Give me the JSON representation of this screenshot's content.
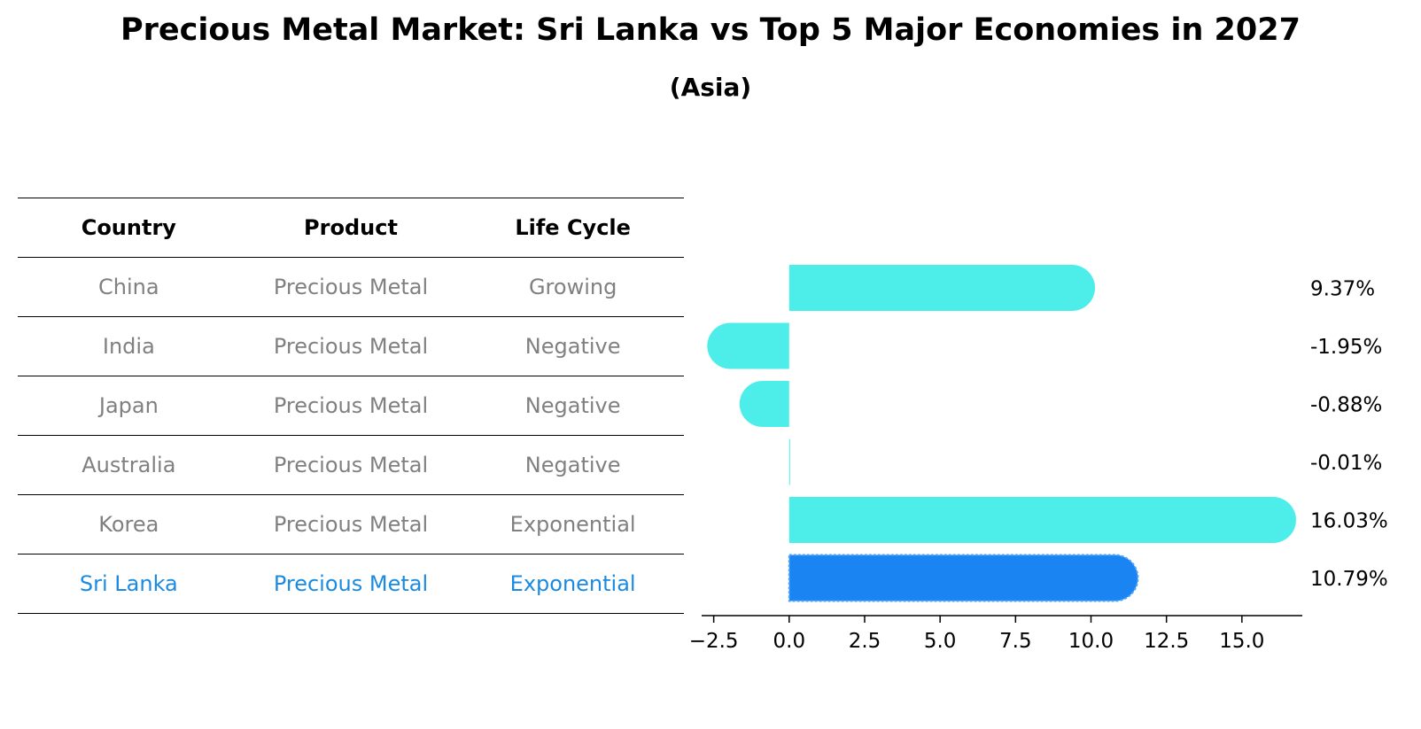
{
  "title": "Precious Metal Market: Sri Lanka vs Top 5 Major Economies in 2027",
  "subtitle": "(Asia)",
  "table": {
    "headers": [
      "Country",
      "Product",
      "Life Cycle"
    ],
    "rows": [
      {
        "country": "China",
        "product": "Precious Metal",
        "life_cycle": "Growing"
      },
      {
        "country": "India",
        "product": "Precious Metal",
        "life_cycle": "Negative"
      },
      {
        "country": "Japan",
        "product": "Precious Metal",
        "life_cycle": "Negative"
      },
      {
        "country": "Australia",
        "product": "Precious Metal",
        "life_cycle": "Negative"
      },
      {
        "country": "Korea",
        "product": "Precious Metal",
        "life_cycle": "Exponential"
      },
      {
        "country": "Sri Lanka",
        "product": "Precious Metal",
        "life_cycle": "Exponential"
      }
    ]
  },
  "colors": {
    "bar": "#4deee9",
    "highlight": "#1a85f2",
    "muted_text": "#808080",
    "highlight_text": "#1a8be0"
  },
  "chart_data": {
    "type": "bar",
    "orientation": "horizontal",
    "categories": [
      "China",
      "India",
      "Japan",
      "Australia",
      "Korea",
      "Sri Lanka"
    ],
    "values": [
      9.37,
      -1.95,
      -0.88,
      -0.01,
      16.03,
      10.79
    ],
    "labels": [
      "9.37%",
      "-1.95%",
      "-0.88%",
      "-0.01%",
      "16.03%",
      "10.79%"
    ],
    "highlight_index": 5,
    "xlim": [
      -2.9,
      17.0
    ],
    "xticks": [
      -2.5,
      0.0,
      2.5,
      5.0,
      7.5,
      10.0,
      12.5,
      15.0
    ],
    "xtick_labels": [
      "−2.5",
      "0.0",
      "2.5",
      "5.0",
      "7.5",
      "10.0",
      "12.5",
      "15.0"
    ]
  }
}
